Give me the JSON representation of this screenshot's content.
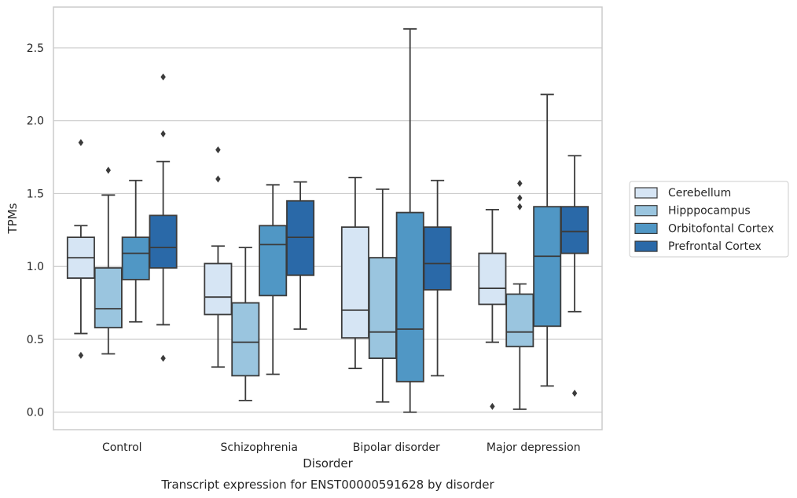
{
  "caption": "Transcript expression for ENST00000591628 by disorder",
  "chart_data": {
    "type": "box",
    "xlabel": "Disorder",
    "ylabel": "TPMs",
    "ylim": [
      -0.12,
      2.78
    ],
    "yticks": [
      0.0,
      0.5,
      1.0,
      1.5,
      2.0,
      2.5
    ],
    "ytick_labels": [
      "0.0",
      "0.5",
      "1.0",
      "1.5",
      "2.0",
      "2.5"
    ],
    "grid": "horizontal",
    "legend_position": "right",
    "categories": [
      "Control",
      "Schizophrenia",
      "Bipolar disorder",
      "Major depression"
    ],
    "series": [
      {
        "name": "Cerebellum",
        "color": "#d6e5f4",
        "boxes": [
          {
            "whislo": 0.54,
            "q1": 0.92,
            "med": 1.06,
            "q3": 1.2,
            "whishi": 1.28,
            "fliers": [
              1.85,
              0.39
            ]
          },
          {
            "whislo": 0.31,
            "q1": 0.67,
            "med": 0.79,
            "q3": 1.02,
            "whishi": 1.14,
            "fliers": [
              1.8,
              1.6
            ]
          },
          {
            "whislo": 0.3,
            "q1": 0.51,
            "med": 0.7,
            "q3": 1.27,
            "whishi": 1.61,
            "fliers": []
          },
          {
            "whislo": 0.48,
            "q1": 0.74,
            "med": 0.85,
            "q3": 1.09,
            "whishi": 1.39,
            "fliers": [
              0.04
            ]
          }
        ]
      },
      {
        "name": "Hipppocampus",
        "color": "#9ac5df",
        "boxes": [
          {
            "whislo": 0.4,
            "q1": 0.58,
            "med": 0.71,
            "q3": 0.99,
            "whishi": 1.49,
            "fliers": [
              1.66
            ]
          },
          {
            "whislo": 0.08,
            "q1": 0.25,
            "med": 0.48,
            "q3": 0.75,
            "whishi": 1.13,
            "fliers": []
          },
          {
            "whislo": 0.07,
            "q1": 0.37,
            "med": 0.55,
            "q3": 1.06,
            "whishi": 1.53,
            "fliers": []
          },
          {
            "whislo": 0.02,
            "q1": 0.45,
            "med": 0.55,
            "q3": 0.81,
            "whishi": 0.88,
            "fliers": [
              1.57,
              1.47,
              1.41
            ]
          }
        ]
      },
      {
        "name": "Orbitofontal Cortex",
        "color": "#5097c5",
        "boxes": [
          {
            "whislo": 0.62,
            "q1": 0.91,
            "med": 1.09,
            "q3": 1.2,
            "whishi": 1.59,
            "fliers": []
          },
          {
            "whislo": 0.26,
            "q1": 0.8,
            "med": 1.15,
            "q3": 1.28,
            "whishi": 1.56,
            "fliers": []
          },
          {
            "whislo": 0.0,
            "q1": 0.21,
            "med": 0.57,
            "q3": 1.37,
            "whishi": 2.63,
            "fliers": []
          },
          {
            "whislo": 0.18,
            "q1": 0.59,
            "med": 1.07,
            "q3": 1.41,
            "whishi": 2.18,
            "fliers": []
          }
        ]
      },
      {
        "name": "Prefrontal Cortex",
        "color": "#2a69a8",
        "boxes": [
          {
            "whislo": 0.6,
            "q1": 0.99,
            "med": 1.13,
            "q3": 1.35,
            "whishi": 1.72,
            "fliers": [
              2.3,
              1.91,
              0.37
            ]
          },
          {
            "whislo": 0.57,
            "q1": 0.94,
            "med": 1.2,
            "q3": 1.45,
            "whishi": 1.58,
            "fliers": []
          },
          {
            "whislo": 0.25,
            "q1": 0.84,
            "med": 1.02,
            "q3": 1.27,
            "whishi": 1.59,
            "fliers": []
          },
          {
            "whislo": 0.69,
            "q1": 1.09,
            "med": 1.24,
            "q3": 1.41,
            "whishi": 1.76,
            "fliers": [
              0.13
            ]
          }
        ]
      }
    ]
  }
}
